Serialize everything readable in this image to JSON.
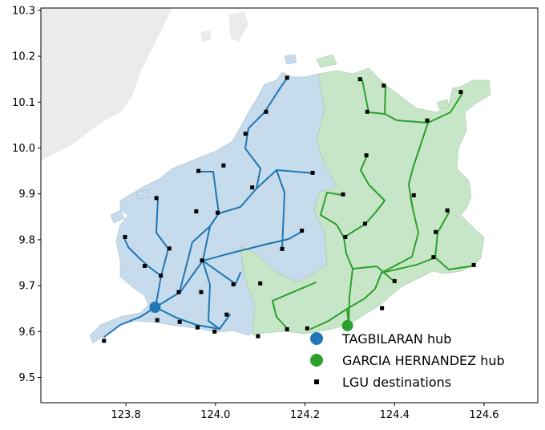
{
  "chart_data": {
    "type": "scatter",
    "title": "",
    "xlabel": "",
    "ylabel": "",
    "xlim": [
      123.61,
      124.72
    ],
    "ylim": [
      9.445,
      10.305
    ],
    "x_ticks": [
      "123.8",
      "124.0",
      "124.2",
      "124.4",
      "124.6"
    ],
    "y_ticks": [
      "9.5",
      "9.6",
      "9.7",
      "9.8",
      "9.9",
      "10.0",
      "10.1",
      "10.2",
      "10.3"
    ],
    "x_tick_values": [
      123.8,
      124.0,
      124.2,
      124.4,
      124.6
    ],
    "y_tick_values": [
      9.5,
      9.6,
      9.7,
      9.8,
      9.9,
      10.0,
      10.1,
      10.2,
      10.3
    ],
    "legend_position": "lower-right",
    "grid": false,
    "series": [
      {
        "name": "TAGBILARAN hub",
        "color": "#1f77b4",
        "region_fill": "#c6dbeb",
        "points": [
          [
            123.865,
            9.653
          ]
        ]
      },
      {
        "name": "GARCIA HERNANDEZ hub",
        "color": "#2ca02c",
        "region_fill": "#c7e6c7",
        "points": [
          [
            124.295,
            9.613
          ]
        ]
      },
      {
        "name": "LGU destinations",
        "color": "#000000",
        "points": [
          [
            123.751,
            9.58
          ],
          [
            123.87,
            9.625
          ],
          [
            123.92,
            9.621
          ],
          [
            123.96,
            9.609
          ],
          [
            123.998,
            9.6
          ],
          [
            124.025,
            9.637
          ],
          [
            124.095,
            9.59
          ],
          [
            124.16,
            9.605
          ],
          [
            124.205,
            9.607
          ],
          [
            123.878,
            9.722
          ],
          [
            123.918,
            9.686
          ],
          [
            123.968,
            9.686
          ],
          [
            123.97,
            9.755
          ],
          [
            124.04,
            9.703
          ],
          [
            123.897,
            9.781
          ],
          [
            123.842,
            9.743
          ],
          [
            123.798,
            9.806
          ],
          [
            123.868,
            9.891
          ],
          [
            123.957,
            9.862
          ],
          [
            124.005,
            9.859
          ],
          [
            124.082,
            9.914
          ],
          [
            123.962,
            9.95
          ],
          [
            124.018,
            9.962
          ],
          [
            124.067,
            10.031
          ],
          [
            124.113,
            10.079
          ],
          [
            124.16,
            10.153
          ],
          [
            124.217,
            9.946
          ],
          [
            124.149,
            9.78
          ],
          [
            124.193,
            9.82
          ],
          [
            124.1,
            9.705
          ],
          [
            124.285,
            9.899
          ],
          [
            124.29,
            9.806
          ],
          [
            124.334,
            9.835
          ],
          [
            124.337,
            9.984
          ],
          [
            124.339,
            10.079
          ],
          [
            124.323,
            10.15
          ],
          [
            124.376,
            10.136
          ],
          [
            124.473,
            10.06
          ],
          [
            124.548,
            10.122
          ],
          [
            124.443,
            9.897
          ],
          [
            124.518,
            9.864
          ],
          [
            124.492,
            9.817
          ],
          [
            124.487,
            9.762
          ],
          [
            124.577,
            9.745
          ],
          [
            124.4,
            9.71
          ],
          [
            124.372,
            9.651
          ]
        ]
      }
    ]
  }
}
